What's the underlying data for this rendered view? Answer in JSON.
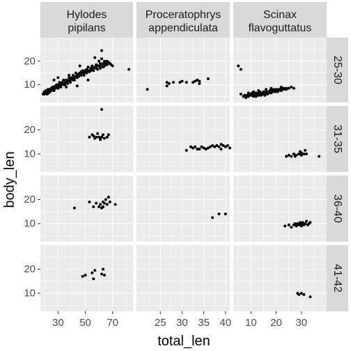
{
  "chart_data": {
    "type": "scatter",
    "facet_type": "facet_grid",
    "xlabel": "total_len",
    "ylabel": "body_len",
    "point_color": "#000000",
    "panel_bg": "#ebebeb",
    "strip_bg": "#d9d9d9",
    "grid": true,
    "y_range": [
      2.5,
      30
    ],
    "y_ticks": [
      10,
      20
    ],
    "columns": [
      {
        "id": "hylodes",
        "label_lines": [
          "Hylodes",
          "pipilans"
        ],
        "x_range": [
          17,
          85
        ],
        "x_ticks": [
          30,
          50,
          70
        ]
      },
      {
        "id": "proceratophrys",
        "label_lines": [
          "Proceratophrys",
          "appendiculata"
        ],
        "x_range": [
          19.5,
          41
        ],
        "x_ticks": [
          25,
          30,
          35,
          40
        ]
      },
      {
        "id": "scinax",
        "label_lines": [
          "Scinax",
          "flavoguttatus"
        ],
        "x_range": [
          3,
          40
        ],
        "x_ticks": [
          10,
          20,
          30
        ]
      }
    ],
    "rows": [
      {
        "id": "r1",
        "label": "25-30"
      },
      {
        "id": "r2",
        "label": "31-35"
      },
      {
        "id": "r3",
        "label": "36-40"
      },
      {
        "id": "r4",
        "label": "41-42"
      }
    ],
    "panels": [
      {
        "col": 0,
        "row": 0,
        "points": [
          [
            19,
            6
          ],
          [
            19.5,
            6.5
          ],
          [
            20,
            6
          ],
          [
            20,
            7
          ],
          [
            21,
            6.5
          ],
          [
            21,
            7.5
          ],
          [
            22,
            7
          ],
          [
            22,
            6
          ],
          [
            22.5,
            8
          ],
          [
            23,
            7.5
          ],
          [
            23,
            6.5
          ],
          [
            24,
            8
          ],
          [
            24,
            7
          ],
          [
            25,
            8.5
          ],
          [
            25,
            7.5
          ],
          [
            26,
            8
          ],
          [
            26,
            9
          ],
          [
            27,
            9
          ],
          [
            27,
            7.5
          ],
          [
            28,
            9.5
          ],
          [
            28,
            8.5
          ],
          [
            29,
            9
          ],
          [
            29,
            10
          ],
          [
            30,
            10
          ],
          [
            30,
            8.5
          ],
          [
            31,
            9.5
          ],
          [
            31,
            11
          ],
          [
            32,
            10
          ],
          [
            32,
            9
          ],
          [
            33,
            11
          ],
          [
            33,
            10.5
          ],
          [
            34,
            10
          ],
          [
            34,
            12
          ],
          [
            35,
            11
          ],
          [
            35,
            10
          ],
          [
            36,
            12
          ],
          [
            36,
            11
          ],
          [
            37,
            11.5
          ],
          [
            37,
            10.5
          ],
          [
            38,
            12
          ],
          [
            38,
            13
          ],
          [
            39,
            12
          ],
          [
            39,
            11
          ],
          [
            40,
            13
          ],
          [
            40,
            12.5
          ],
          [
            41,
            12
          ],
          [
            41,
            14
          ],
          [
            42,
            13
          ],
          [
            42,
            12
          ],
          [
            43,
            13.5
          ],
          [
            43,
            15
          ],
          [
            44,
            13
          ],
          [
            44,
            14
          ],
          [
            45,
            14.5
          ],
          [
            45,
            13.5
          ],
          [
            46,
            14
          ],
          [
            46,
            15
          ],
          [
            47,
            15.5
          ],
          [
            47,
            14
          ],
          [
            48,
            15
          ],
          [
            48,
            16
          ],
          [
            49,
            15
          ],
          [
            49,
            14
          ],
          [
            50,
            16
          ],
          [
            50,
            15.5
          ],
          [
            51,
            16.5
          ],
          [
            51,
            15
          ],
          [
            52,
            16
          ],
          [
            52,
            17.5
          ],
          [
            53,
            16
          ],
          [
            53,
            15.5
          ],
          [
            54,
            17
          ],
          [
            54,
            16
          ],
          [
            55,
            16.5
          ],
          [
            55,
            18
          ],
          [
            56,
            17
          ],
          [
            56,
            16
          ],
          [
            57,
            17.5
          ],
          [
            58,
            17
          ],
          [
            58,
            18.5
          ],
          [
            59,
            18
          ],
          [
            59,
            16.5
          ],
          [
            60,
            18
          ],
          [
            60,
            20
          ],
          [
            61,
            19
          ],
          [
            61,
            17
          ],
          [
            62,
            21
          ],
          [
            62,
            18
          ],
          [
            63,
            19
          ],
          [
            63,
            17.5
          ],
          [
            64,
            18
          ],
          [
            64,
            20
          ],
          [
            65,
            19
          ],
          [
            66,
            18.5
          ],
          [
            66,
            20
          ],
          [
            67,
            19.5
          ],
          [
            68,
            19
          ],
          [
            69,
            18.5
          ],
          [
            70,
            18
          ],
          [
            62,
            24.5
          ],
          [
            57,
            21.5
          ],
          [
            46,
            18
          ],
          [
            38,
            14
          ],
          [
            30,
            13
          ],
          [
            82,
            16.5
          ],
          [
            44,
            9.5
          ],
          [
            36,
            9
          ],
          [
            27,
            12
          ],
          [
            52,
            12
          ]
        ]
      },
      {
        "col": 1,
        "row": 0,
        "points": [
          [
            22,
            8
          ],
          [
            26.5,
            9.5
          ],
          [
            26.5,
            11
          ],
          [
            27,
            10.5
          ],
          [
            28,
            11
          ],
          [
            29.5,
            11
          ],
          [
            30,
            11.5
          ],
          [
            31,
            11
          ],
          [
            32.5,
            11
          ],
          [
            33,
            11.5
          ],
          [
            33.5,
            12
          ],
          [
            34,
            10.5
          ],
          [
            34,
            11.5
          ],
          [
            36,
            12.5
          ]
        ]
      },
      {
        "col": 2,
        "row": 0,
        "points": [
          [
            5,
            18
          ],
          [
            6,
            16.5
          ],
          [
            6,
            6
          ],
          [
            7,
            5
          ],
          [
            7.5,
            5.5
          ],
          [
            8,
            4.5
          ],
          [
            8.5,
            5.5
          ],
          [
            9,
            6
          ],
          [
            9,
            5
          ],
          [
            10,
            6
          ],
          [
            10,
            5.5
          ],
          [
            10.5,
            6.5
          ],
          [
            11,
            5
          ],
          [
            11,
            6
          ],
          [
            11.5,
            5.5
          ],
          [
            12,
            6.5
          ],
          [
            12,
            5
          ],
          [
            12.5,
            6
          ],
          [
            13,
            5.5
          ],
          [
            13,
            6.5
          ],
          [
            13.5,
            7
          ],
          [
            14,
            6
          ],
          [
            14,
            5.5
          ],
          [
            14.5,
            6.5
          ],
          [
            15,
            6
          ],
          [
            15,
            7
          ],
          [
            15.5,
            5.5
          ],
          [
            16,
            6.5
          ],
          [
            16,
            7
          ],
          [
            16.5,
            6
          ],
          [
            17,
            7
          ],
          [
            17,
            6.5
          ],
          [
            17.5,
            7.5
          ],
          [
            18,
            6.5
          ],
          [
            18,
            7.5
          ],
          [
            18.5,
            7
          ],
          [
            19,
            7.5
          ],
          [
            19,
            8
          ],
          [
            19.5,
            7
          ],
          [
            20,
            7.5
          ],
          [
            20,
            8
          ],
          [
            20.5,
            7
          ],
          [
            21,
            8
          ],
          [
            21,
            7.5
          ],
          [
            21.5,
            8
          ],
          [
            22,
            8.5
          ],
          [
            22,
            7.5
          ],
          [
            23,
            8
          ],
          [
            23,
            8.5
          ],
          [
            24,
            8
          ],
          [
            24,
            8.5
          ],
          [
            25,
            8.5
          ],
          [
            26,
            9
          ],
          [
            27,
            8.5
          ],
          [
            9,
            6.5
          ],
          [
            11,
            7
          ],
          [
            13,
            7.5
          ],
          [
            16,
            8
          ],
          [
            18,
            8.5
          ],
          [
            22,
            9
          ]
        ]
      },
      {
        "col": 0,
        "row": 1,
        "points": [
          [
            62,
            28.5
          ],
          [
            53,
            17
          ],
          [
            55,
            18
          ],
          [
            56,
            17.5
          ],
          [
            57,
            16.5
          ],
          [
            58,
            17
          ],
          [
            59,
            18.5
          ],
          [
            60,
            17
          ],
          [
            61,
            16
          ],
          [
            62,
            17
          ],
          [
            63,
            18
          ],
          [
            64,
            16.5
          ],
          [
            66,
            17
          ],
          [
            67,
            18
          ]
        ]
      },
      {
        "col": 1,
        "row": 1,
        "points": [
          [
            31,
            11.5
          ],
          [
            32,
            13
          ],
          [
            32.5,
            12.5
          ],
          [
            33,
            13
          ],
          [
            33.5,
            12
          ],
          [
            34,
            12
          ],
          [
            34.5,
            13
          ],
          [
            35,
            12.5
          ],
          [
            35.5,
            12
          ],
          [
            36,
            12.5
          ],
          [
            36.5,
            13
          ],
          [
            37,
            13.5
          ],
          [
            37.5,
            13
          ],
          [
            38,
            13.5
          ],
          [
            38.5,
            13
          ],
          [
            39,
            14
          ],
          [
            39.5,
            13.5
          ],
          [
            40,
            13
          ],
          [
            40.5,
            13.5
          ],
          [
            41,
            12.5
          ],
          [
            39,
            12
          ]
        ]
      },
      {
        "col": 2,
        "row": 1,
        "points": [
          [
            24,
            9
          ],
          [
            25,
            9.5
          ],
          [
            26,
            9
          ],
          [
            27,
            10
          ],
          [
            27.5,
            9
          ],
          [
            28,
            9.5
          ],
          [
            29,
            10
          ],
          [
            29.5,
            11
          ],
          [
            30,
            10.5
          ],
          [
            30,
            9.5
          ],
          [
            31,
            10
          ],
          [
            31.5,
            11.5
          ],
          [
            32,
            10
          ],
          [
            37,
            9
          ]
        ]
      },
      {
        "col": 0,
        "row": 2,
        "points": [
          [
            42,
            16.5
          ],
          [
            53,
            19
          ],
          [
            56,
            17
          ],
          [
            58,
            18.5
          ],
          [
            60,
            17
          ],
          [
            61,
            18
          ],
          [
            62,
            16.5
          ],
          [
            63,
            19
          ],
          [
            63,
            17
          ],
          [
            64,
            18.5
          ],
          [
            65,
            20
          ],
          [
            66,
            18
          ],
          [
            67,
            21
          ],
          [
            68,
            19
          ],
          [
            72,
            18
          ]
        ]
      },
      {
        "col": 1,
        "row": 2,
        "points": [
          [
            37,
            12.5
          ],
          [
            38.5,
            14
          ],
          [
            40,
            14
          ]
        ]
      },
      {
        "col": 2,
        "row": 2,
        "points": [
          [
            23.5,
            9
          ],
          [
            25,
            9.5
          ],
          [
            26,
            8.5
          ],
          [
            27,
            9.5
          ],
          [
            27.5,
            10
          ],
          [
            28,
            9
          ],
          [
            28.5,
            10
          ],
          [
            29,
            9.5
          ],
          [
            29.5,
            10.5
          ],
          [
            30,
            9
          ],
          [
            30,
            10
          ],
          [
            30.5,
            10.5
          ],
          [
            31,
            9.5
          ],
          [
            31.5,
            10
          ],
          [
            32,
            11
          ],
          [
            32.5,
            9.5
          ],
          [
            33,
            10
          ],
          [
            33.5,
            10.5
          ]
        ]
      },
      {
        "col": 0,
        "row": 3,
        "points": [
          [
            48,
            17
          ],
          [
            50,
            17.5
          ],
          [
            55,
            18.5
          ],
          [
            56,
            16
          ],
          [
            57,
            19.5
          ],
          [
            62,
            18
          ],
          [
            63,
            20
          ],
          [
            64,
            17.5
          ]
        ]
      },
      {
        "col": 2,
        "row": 3,
        "points": [
          [
            28.5,
            10
          ],
          [
            29,
            9.5
          ],
          [
            30,
            10
          ],
          [
            31,
            9.5
          ],
          [
            33.5,
            8.5
          ]
        ]
      }
    ]
  }
}
